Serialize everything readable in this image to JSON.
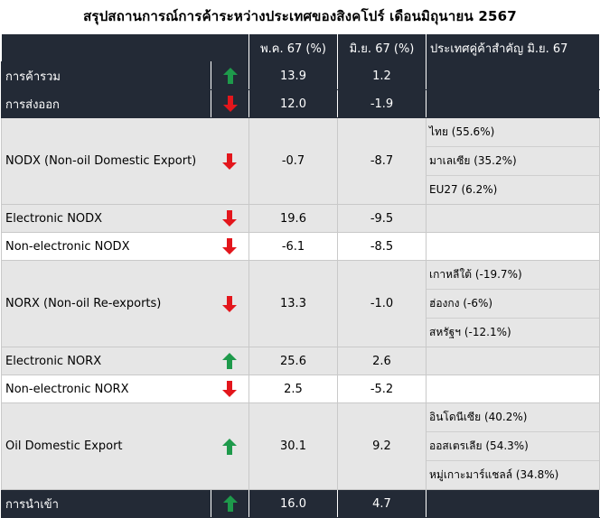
{
  "title": "สรุปสถานการณ์การค้าระหว่างประเทศของสิงคโปร์ เดือนมิถุนายน 2567",
  "headers": [
    "",
    "พ.ค. 67 (%)",
    "มิ.ย. 67 (%)",
    "ประเทศคู่ค้าสำคัญ มิ.ย. 67"
  ],
  "colors": {
    "header_bg": "#232a36",
    "up_arrow": "#1e9a4b",
    "down_arrow": "#e3161c",
    "row_light": "#e6e6e6"
  },
  "rows": [
    {
      "label": "การค้ารวม",
      "arrow": "up-arrow-icon",
      "may": "13.9",
      "jun": "1.2",
      "partners": []
    },
    {
      "label": "การส่งออก",
      "arrow": "down-arrow-icon",
      "may": "12.0",
      "jun": "-1.9",
      "partners": []
    },
    {
      "label": "NODX (Non-oil Domestic Export)",
      "arrow": "down-arrow-icon",
      "may": "-0.7",
      "jun": "-8.7",
      "partners": [
        "ไทย (55.6%)",
        "มาเลเซีย (35.2%)",
        "EU27 (6.2%)"
      ]
    },
    {
      "label": "Electronic NODX",
      "arrow": "down-arrow-icon",
      "may": "19.6",
      "jun": "-9.5",
      "partners": []
    },
    {
      "label": "Non-electronic NODX",
      "arrow": "down-arrow-icon",
      "may": "-6.1",
      "jun": "-8.5",
      "partners": []
    },
    {
      "label": "NORX (Non-oil Re-exports)",
      "arrow": "down-arrow-icon",
      "may": "13.3",
      "jun": "-1.0",
      "partners": [
        "เกาหลีใต้ (-19.7%)",
        "ฮ่องกง (-6%)",
        "สหรัฐฯ (-12.1%)"
      ]
    },
    {
      "label": "Electronic NORX",
      "arrow": "up-arrow-icon",
      "may": "25.6",
      "jun": "2.6",
      "partners": []
    },
    {
      "label": "Non-electronic NORX",
      "arrow": "down-arrow-icon",
      "may": "2.5",
      "jun": "-5.2",
      "partners": []
    },
    {
      "label": "Oil Domestic Export",
      "arrow": "up-arrow-icon",
      "may": "30.1",
      "jun": "9.2",
      "partners": [
        "อินโดนีเซีย (40.2%)",
        "ออสเตรเลีย (54.3%)",
        "หมู่เกาะมาร์แชลล์ (34.8%)"
      ]
    },
    {
      "label": "การนำเข้า",
      "arrow": "up-arrow-icon",
      "may": "16.0",
      "jun": "4.7",
      "partners": []
    }
  ]
}
